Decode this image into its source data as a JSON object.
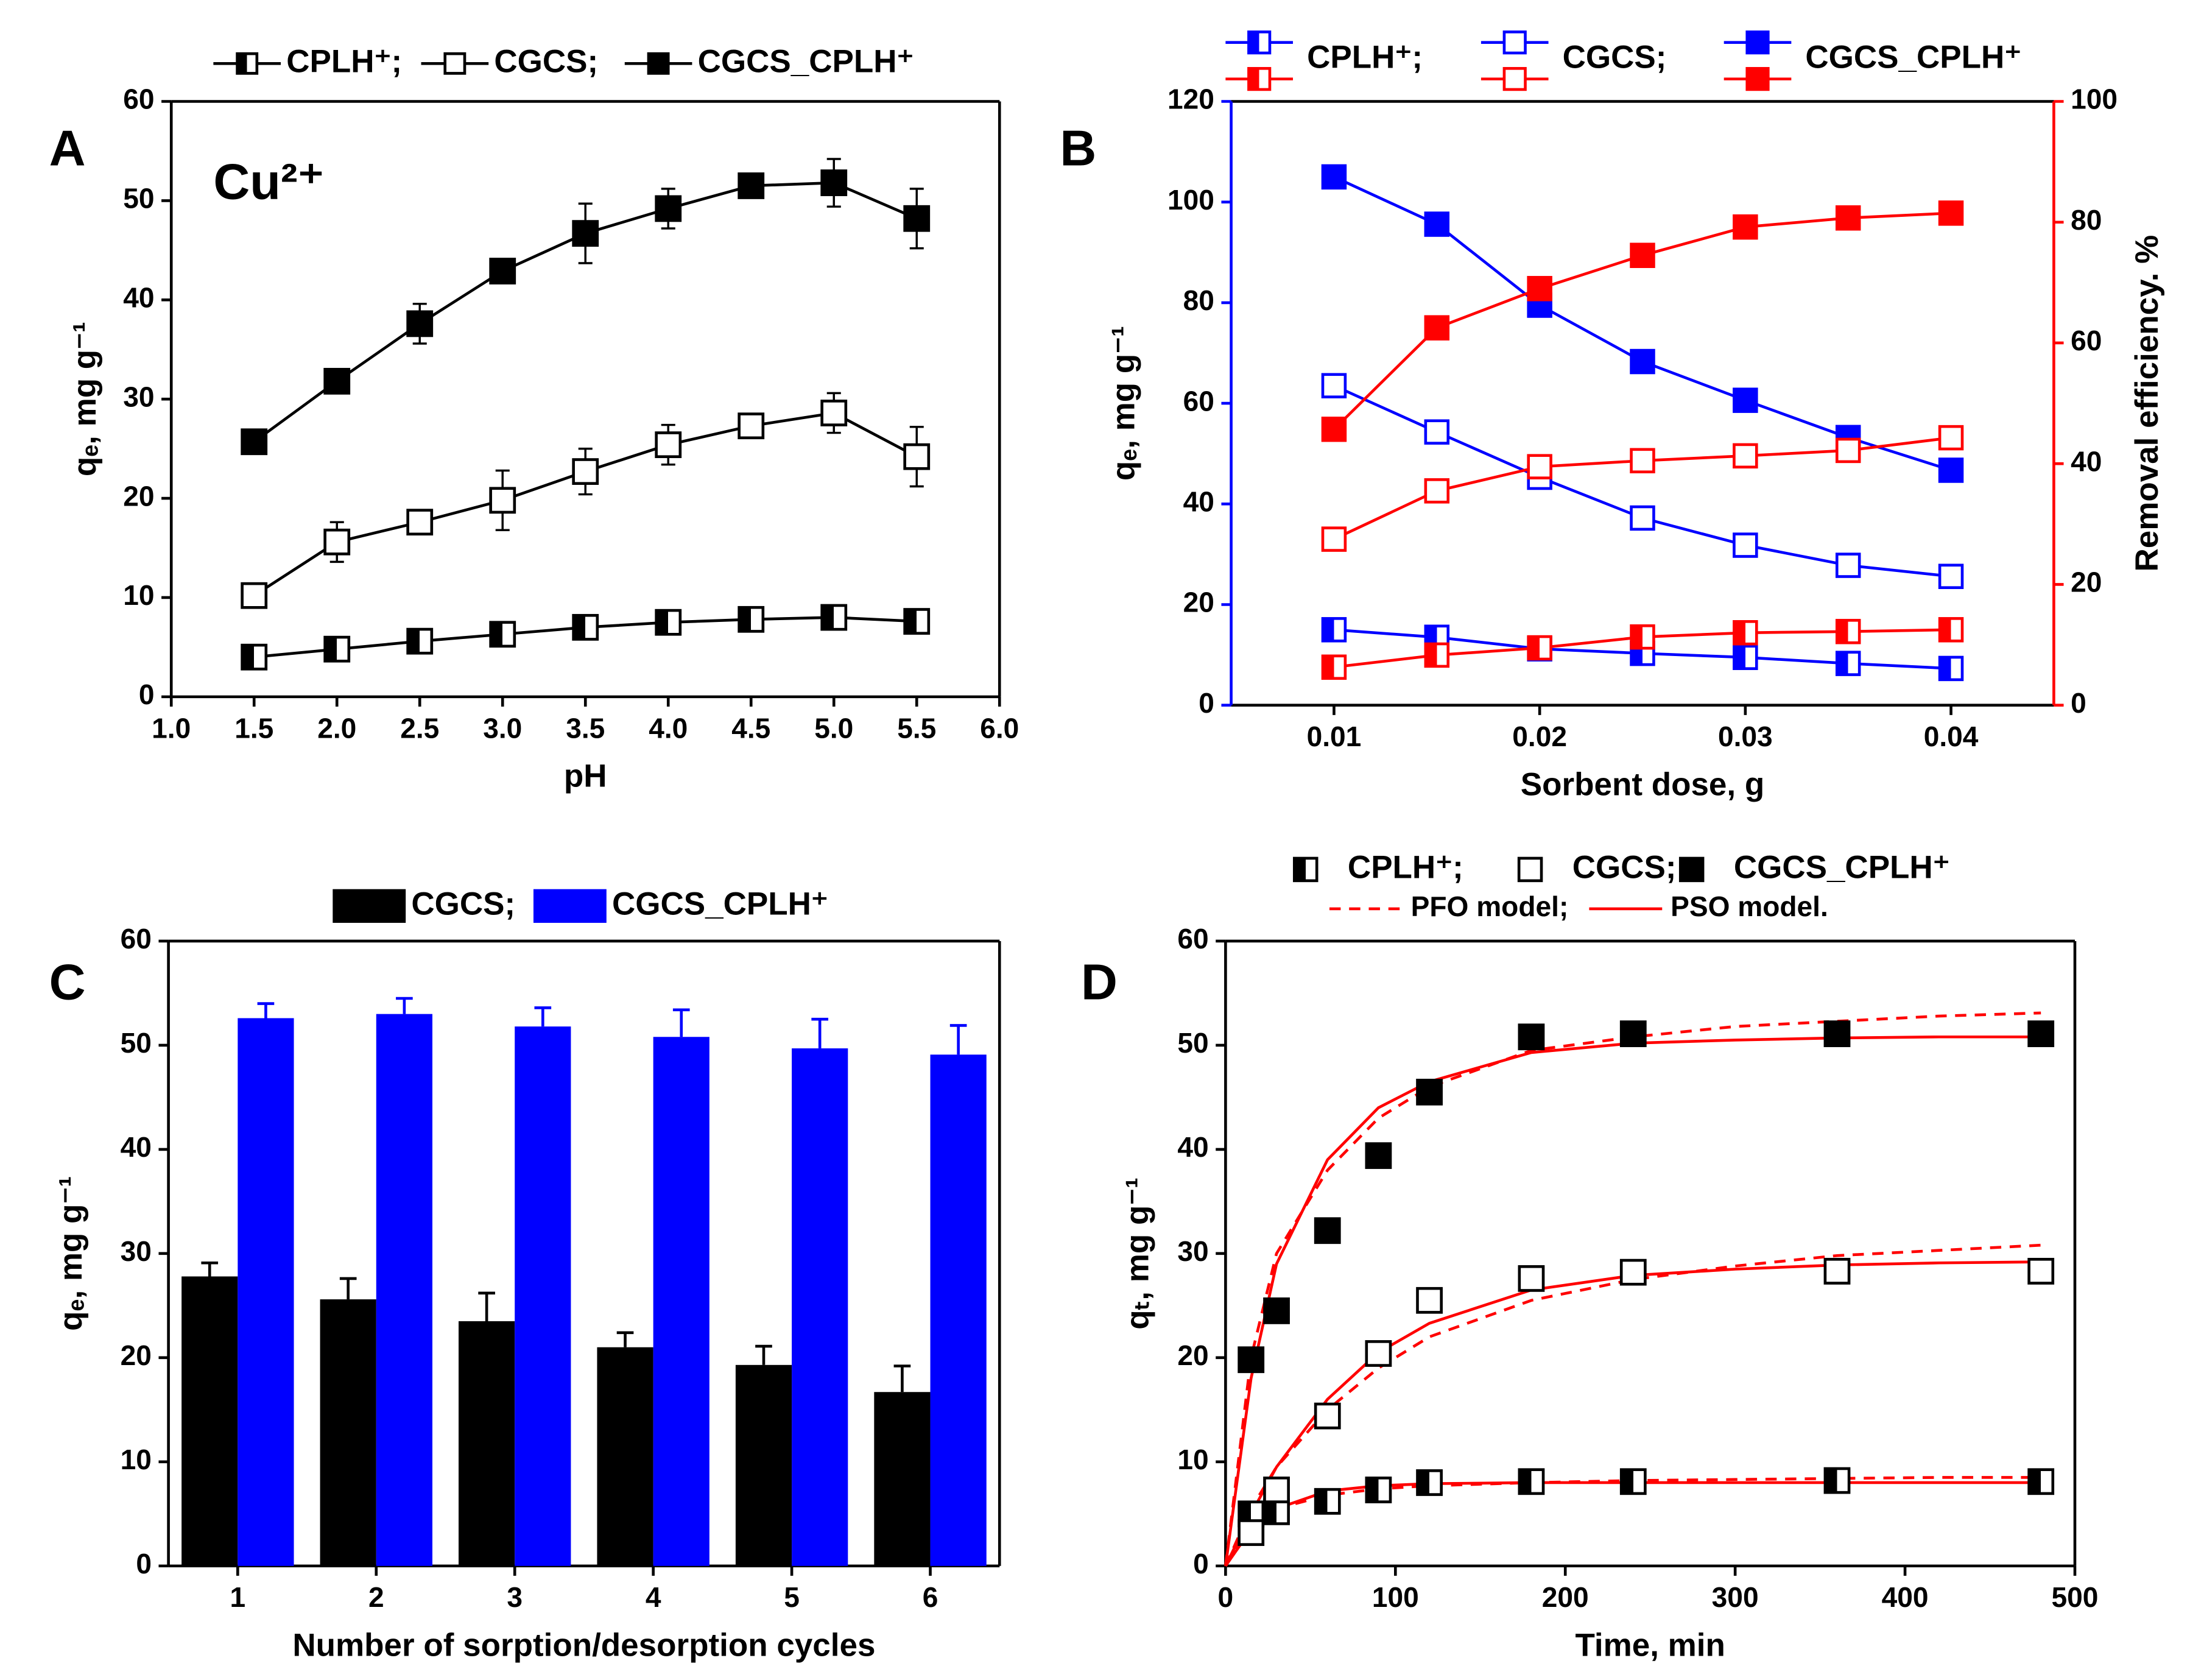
{
  "chart_data": [
    {
      "type": "line",
      "panel_label": "A",
      "annotation": "Cu²⁺",
      "x": [
        1.5,
        2.0,
        2.5,
        3.0,
        3.5,
        4.0,
        4.5,
        5.0,
        5.5
      ],
      "xlabel": "pH",
      "ylabel": "qₑ, mg g⁻¹",
      "xlim": [
        1,
        6
      ],
      "xticks": [
        {
          "value": 1,
          "label": "1.0"
        },
        {
          "value": 1.5,
          "label": "1.5"
        },
        {
          "value": 2,
          "label": "2.0"
        },
        {
          "value": 2.5,
          "label": "2.5"
        },
        {
          "value": 3,
          "label": "3.0"
        },
        {
          "value": 3.5,
          "label": "3.5"
        },
        {
          "value": 4,
          "label": "4.0"
        },
        {
          "value": 4.5,
          "label": "4.5"
        },
        {
          "value": 5,
          "label": "5.0"
        },
        {
          "value": 5.5,
          "label": "5.5"
        },
        {
          "value": 6,
          "label": "6.0"
        }
      ],
      "ylim": [
        0,
        60
      ],
      "yticks": [
        0,
        10,
        20,
        30,
        40,
        50,
        60
      ],
      "series": [
        {
          "name": "CPLH⁺;",
          "color": "#000000",
          "marker": "half",
          "values": [
            4.0,
            4.8,
            5.6,
            6.3,
            7.0,
            7.5,
            7.8,
            8.0,
            7.6
          ],
          "errors": [
            0.5,
            0.5,
            0.5,
            0.5,
            0.5,
            0.5,
            0.5,
            0.5,
            0.5
          ]
        },
        {
          "name": "CGCS;",
          "color": "#000000",
          "marker": "open",
          "values": [
            10.2,
            15.6,
            17.6,
            19.8,
            22.7,
            25.4,
            27.3,
            28.6,
            24.2
          ],
          "errors": [
            0.3,
            2.0,
            0.5,
            3.0,
            2.3,
            2.0,
            1.2,
            2.0,
            3.0
          ]
        },
        {
          "name": "CGCS_CPLH⁺",
          "color": "#000000",
          "marker": "filled",
          "values": [
            25.7,
            31.8,
            37.6,
            42.9,
            46.7,
            49.2,
            51.5,
            51.8,
            48.2
          ],
          "errors": [
            0.4,
            0.6,
            2.0,
            1.2,
            3.0,
            2.0,
            1.0,
            2.4,
            3.0
          ]
        }
      ]
    },
    {
      "type": "line",
      "panel_label": "B",
      "x": [
        0.01,
        0.015,
        0.02,
        0.025,
        0.03,
        0.035,
        0.04
      ],
      "xlabel": "Sorbent dose, g",
      "ylabel": "qₑ, mg g⁻¹",
      "y2label": "Removal efficiency. %",
      "xlim": [
        0.005,
        0.045
      ],
      "xticks": [
        0.01,
        0.02,
        0.03,
        0.04
      ],
      "ylim": [
        0,
        120
      ],
      "yticks": [
        0,
        20,
        40,
        60,
        80,
        100,
        120
      ],
      "y2lim": [
        0,
        100
      ],
      "y2ticks": [
        0,
        20,
        40,
        60,
        80,
        100
      ],
      "series": [
        {
          "name": "CPLH⁺;",
          "color": "#0000ff",
          "marker": "half",
          "values": [
            15.0,
            13.5,
            11.2,
            10.3,
            9.5,
            8.3,
            7.3
          ]
        },
        {
          "name": "CGCS;",
          "color": "#0000ff",
          "marker": "open",
          "values": [
            63.5,
            54.3,
            45.3,
            37.2,
            31.8,
            27.8,
            25.6
          ]
        },
        {
          "name": "CGCS_CPLH⁺",
          "color": "#0000ff",
          "marker": "filled",
          "values": [
            105.0,
            95.6,
            79.5,
            68.3,
            60.6,
            53.2,
            46.7
          ]
        },
        {
          "color": "#ff0000",
          "marker": "half",
          "axis": "y2",
          "values": [
            6.3,
            8.3,
            9.5,
            11.3,
            12.0,
            12.2,
            12.5
          ]
        },
        {
          "color": "#ff0000",
          "marker": "open",
          "axis": "y2",
          "values": [
            27.5,
            35.5,
            39.5,
            40.5,
            41.3,
            42.2,
            44.3
          ]
        },
        {
          "color": "#ff0000",
          "marker": "filled",
          "axis": "y2",
          "values": [
            45.7,
            62.5,
            69.0,
            74.5,
            79.2,
            80.7,
            81.5
          ]
        }
      ]
    },
    {
      "type": "bar",
      "panel_label": "C",
      "categories": [
        "1",
        "2",
        "3",
        "4",
        "5",
        "6"
      ],
      "xlabel": "Number of sorption/desorption cycles",
      "ylabel": "qₑ, mg g⁻¹",
      "ylim": [
        0,
        60
      ],
      "yticks": [
        0,
        10,
        20,
        30,
        40,
        50,
        60
      ],
      "series": [
        {
          "name": "CGCS;",
          "color": "#000000",
          "values": [
            27.8,
            25.6,
            23.5,
            21.0,
            19.3,
            16.7
          ],
          "errors": [
            1.3,
            2.0,
            2.7,
            1.4,
            1.8,
            2.5
          ]
        },
        {
          "name": "CGCS_CPLH⁺",
          "color": "#0000ff",
          "values": [
            52.6,
            53.0,
            51.8,
            50.8,
            49.7,
            49.1
          ],
          "errors": [
            1.4,
            1.5,
            1.8,
            2.6,
            2.8,
            2.8
          ]
        }
      ]
    },
    {
      "type": "scatter",
      "panel_label": "D",
      "x": [
        15,
        30,
        60,
        90,
        120,
        180,
        240,
        360,
        480
      ],
      "xlabel": "Time, min",
      "ylabel": "qₜ, mg g⁻¹",
      "xlim": [
        0,
        500
      ],
      "xticks": [
        0,
        100,
        200,
        300,
        400,
        500
      ],
      "ylim": [
        0,
        60
      ],
      "yticks": [
        0,
        10,
        20,
        30,
        40,
        50,
        60
      ],
      "series": [
        {
          "name": "CPLH⁺;",
          "color": "#000000",
          "marker": "half",
          "values": [
            5.0,
            5.2,
            6.2,
            7.3,
            8.0,
            8.1,
            8.1,
            8.2,
            8.1
          ]
        },
        {
          "name": "CGCS;",
          "color": "#000000",
          "marker": "open",
          "values": [
            3.2,
            7.3,
            14.4,
            20.4,
            25.5,
            27.6,
            28.2,
            28.3,
            28.3
          ]
        },
        {
          "name": "CGCS_CPLH⁺",
          "color": "#000000",
          "marker": "filled",
          "values": [
            19.8,
            24.5,
            32.2,
            39.4,
            45.5,
            50.8,
            51.1,
            51.1,
            51.1
          ]
        }
      ],
      "model_x": [
        0,
        15,
        30,
        60,
        90,
        120,
        180,
        240,
        300,
        360,
        420,
        480
      ],
      "models": [
        {
          "name": "PFO model;",
          "color": "#ff0000",
          "dash": true,
          "curves": [
            [
              0,
              4.0,
              5.5,
              6.8,
              7.4,
              7.7,
              8.0,
              8.2,
              8.3,
              8.4,
              8.5,
              8.5
            ],
            [
              0,
              5.5,
              9.5,
              15.0,
              19.0,
              22.0,
              25.5,
              27.5,
              28.8,
              29.8,
              30.3,
              30.8
            ],
            [
              0,
              20.0,
              30.0,
              38.0,
              43.0,
              46.0,
              49.5,
              50.8,
              51.8,
              52.3,
              52.8,
              53.1
            ]
          ]
        },
        {
          "name": "PSO model.",
          "color": "#ff0000",
          "dash": false,
          "curves": [
            [
              0,
              3.5,
              5.5,
              7.2,
              7.7,
              7.9,
              8.0,
              8.0,
              8.0,
              8.0,
              8.0,
              8.0
            ],
            [
              0,
              5.0,
              9.5,
              16.0,
              20.5,
              23.3,
              26.5,
              27.9,
              28.5,
              28.9,
              29.1,
              29.2
            ],
            [
              0,
              18.0,
              29.0,
              39.0,
              44.0,
              46.5,
              49.3,
              50.2,
              50.5,
              50.7,
              50.8,
              50.8
            ]
          ]
        }
      ]
    }
  ]
}
